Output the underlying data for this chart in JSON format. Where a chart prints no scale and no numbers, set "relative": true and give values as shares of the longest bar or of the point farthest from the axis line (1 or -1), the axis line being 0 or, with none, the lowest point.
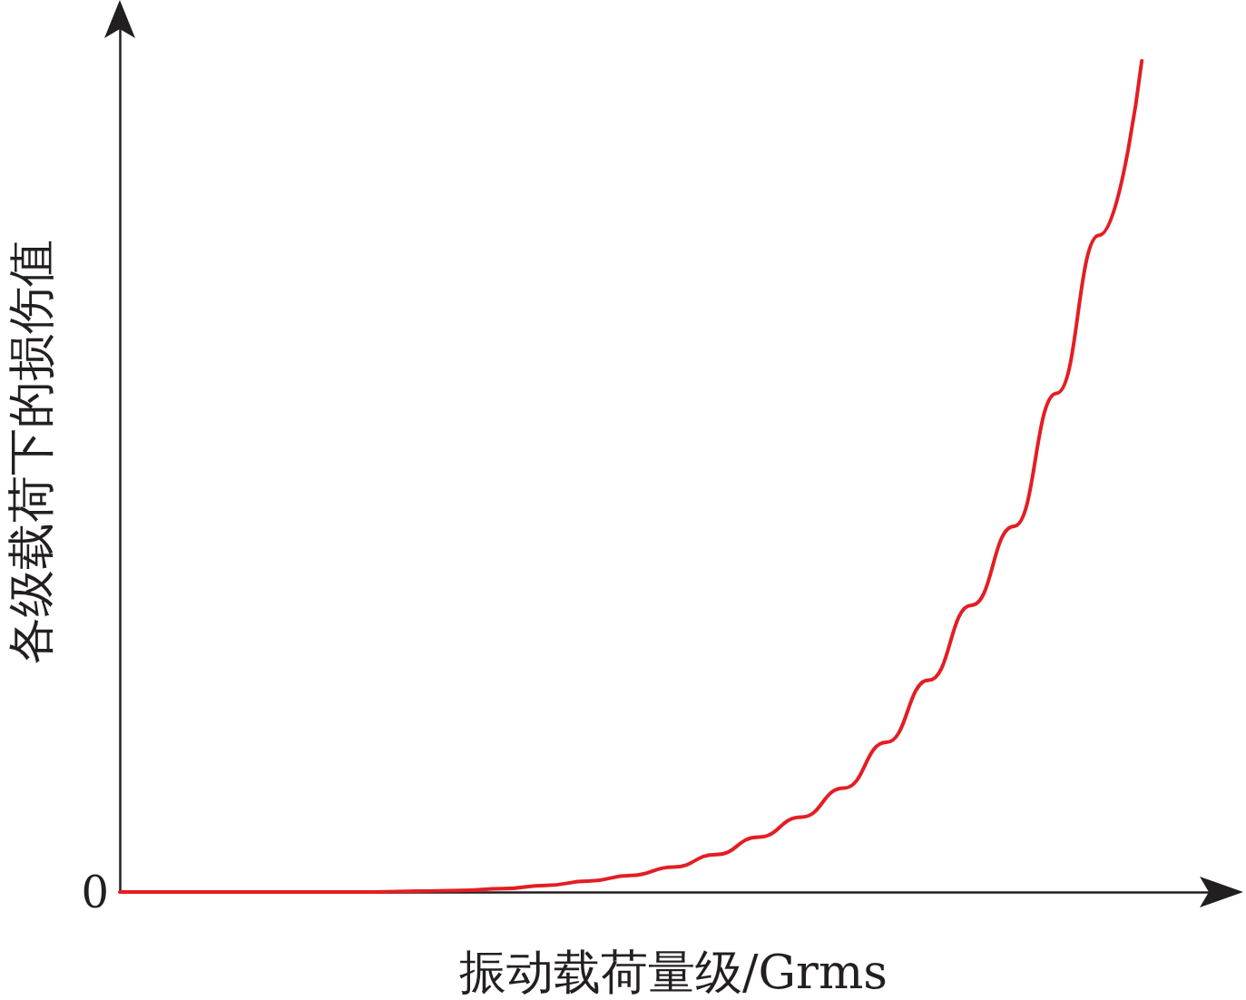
{
  "chart_data": {
    "type": "line",
    "relative": true,
    "xlabel": "振动载荷量级/Grms",
    "ylabel": "各级载荷下的损伤值",
    "categories": [
      null,
      null,
      null,
      null,
      null,
      null,
      null,
      null,
      null,
      null,
      null,
      null,
      null,
      null,
      null,
      null,
      null,
      null,
      null,
      null,
      null,
      null,
      null,
      null,
      null,
      null,
      null
    ],
    "series": [
      {
        "color": "#e31e24",
        "values": [
          0,
          0,
          0,
          0,
          0,
          0,
          0,
          0.001,
          0.002,
          0.004,
          0.008,
          0.013,
          0.02,
          0.03,
          0.045,
          0.066,
          0.09,
          0.125,
          0.18,
          0.255,
          0.345,
          0.44,
          0.6,
          0.79,
          1,
          null,
          null
        ]
      }
    ],
    "annotations": [
      "0"
    ],
    "marker": "none",
    "line_style": "solid"
  }
}
